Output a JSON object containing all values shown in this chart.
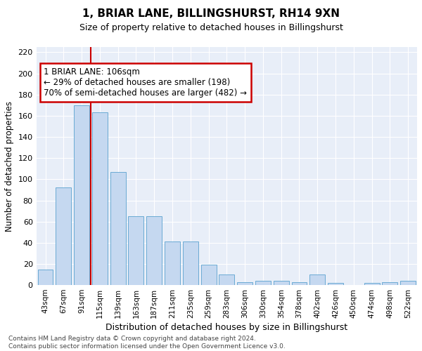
{
  "title": "1, BRIAR LANE, BILLINGSHURST, RH14 9XN",
  "subtitle": "Size of property relative to detached houses in Billingshurst",
  "xlabel": "Distribution of detached houses by size in Billingshurst",
  "ylabel": "Number of detached properties",
  "categories": [
    "43sqm",
    "67sqm",
    "91sqm",
    "115sqm",
    "139sqm",
    "163sqm",
    "187sqm",
    "211sqm",
    "235sqm",
    "259sqm",
    "283sqm",
    "306sqm",
    "330sqm",
    "354sqm",
    "378sqm",
    "402sqm",
    "426sqm",
    "450sqm",
    "474sqm",
    "498sqm",
    "522sqm"
  ],
  "values": [
    15,
    92,
    170,
    163,
    107,
    65,
    65,
    41,
    41,
    19,
    10,
    3,
    4,
    4,
    3,
    10,
    2,
    0,
    2,
    3,
    4
  ],
  "bar_color": "#c5d8f0",
  "bar_edge_color": "#6aaad4",
  "vline_color": "#cc0000",
  "annotation_text": "1 BRIAR LANE: 106sqm\n← 29% of detached houses are smaller (198)\n70% of semi-detached houses are larger (482) →",
  "annotation_box_color": "white",
  "annotation_box_edge_color": "#cc0000",
  "ylim": [
    0,
    225
  ],
  "yticks": [
    0,
    20,
    40,
    60,
    80,
    100,
    120,
    140,
    160,
    180,
    200,
    220
  ],
  "bg_color": "#e8eef8",
  "grid_color": "white",
  "footnote": "Contains HM Land Registry data © Crown copyright and database right 2024.\nContains public sector information licensed under the Open Government Licence v3.0."
}
